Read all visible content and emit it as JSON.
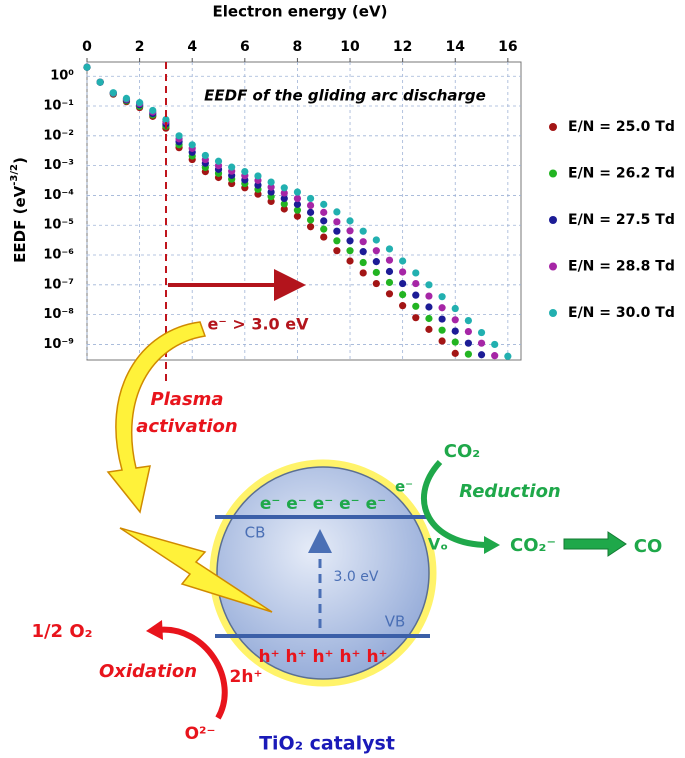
{
  "chart_data": {
    "type": "scatter",
    "x_label": "Electron energy (eV)",
    "y_label": [
      "EEDF (eV",
      "-3/2",
      ")"
    ],
    "annotation": "EEDF of the gliding arc discharge",
    "x": [
      0,
      0.5,
      1,
      1.5,
      2,
      2.5,
      3,
      3.5,
      4,
      4.5,
      5,
      5.5,
      6,
      6.5,
      7,
      7.5,
      8,
      8.5,
      9,
      9.5,
      10,
      10.5,
      11,
      11.5,
      12,
      12.5,
      13,
      13.5,
      14,
      14.5,
      15,
      15.5,
      16
    ],
    "xlim": [
      0,
      16.5
    ],
    "xticks": [
      0,
      2,
      4,
      6,
      8,
      10,
      12,
      14,
      16
    ],
    "log_y": true,
    "ylim": [
      3e-10,
      3
    ],
    "yticks": [
      {
        "value": 1,
        "label": "10⁰"
      },
      {
        "value": 0.1,
        "label": "10⁻¹"
      },
      {
        "value": 0.01,
        "label": "10⁻²"
      },
      {
        "value": 0.001,
        "label": "10⁻³"
      },
      {
        "value": 0.0001,
        "label": "10⁻⁴"
      },
      {
        "value": 1e-05,
        "label": "10⁻⁵"
      },
      {
        "value": 1e-06,
        "label": "10⁻⁶"
      },
      {
        "value": 1e-07,
        "label": "10⁻⁷"
      },
      {
        "value": 1e-08,
        "label": "10⁻⁸"
      },
      {
        "value": 1e-09,
        "label": "10⁻⁹"
      }
    ],
    "grid": true,
    "legend": "right",
    "series": [
      {
        "name": "E/N = 25.0 Td",
        "color": "#a31515",
        "values": [
          2.0,
          0.63,
          0.25,
          0.14,
          0.089,
          0.045,
          0.018,
          0.004,
          0.0016,
          0.00063,
          0.0004,
          0.00025,
          0.00018,
          0.00011,
          6.3e-05,
          3.5e-05,
          2e-05,
          8.9e-06,
          4e-06,
          1.4e-06,
          6.3e-07,
          2.5e-07,
          1.1e-07,
          5e-08,
          2e-08,
          7.9e-09,
          3.2e-09,
          1.3e-09,
          5e-10,
          null,
          null,
          null,
          null
        ]
      },
      {
        "name": "E/N = 26.2 Td",
        "color": "#22b422",
        "values": [
          2.0,
          0.63,
          0.26,
          0.15,
          0.098,
          0.05,
          0.021,
          0.005,
          0.0021,
          0.00087,
          0.00055,
          0.00035,
          0.00025,
          0.00016,
          9.1e-05,
          5.2e-05,
          3.2e-05,
          1.5e-05,
          7.4e-06,
          3e-06,
          1.4e-06,
          5.6e-07,
          2.6e-07,
          1.2e-07,
          4.7e-08,
          1.9e-08,
          7.4e-09,
          3e-09,
          1.2e-09,
          4.7e-10,
          null,
          null,
          null
        ]
      },
      {
        "name": "E/N = 27.5 Td",
        "color": "#1c1c96",
        "values": [
          2.0,
          0.63,
          0.27,
          0.16,
          0.11,
          0.056,
          0.025,
          0.0063,
          0.0028,
          0.0012,
          0.00075,
          0.00047,
          0.00033,
          0.00022,
          0.00013,
          7.9e-05,
          5e-05,
          2.7e-05,
          1.4e-05,
          6.3e-06,
          3e-06,
          1.3e-06,
          6e-07,
          2.8e-07,
          1.1e-07,
          4.5e-08,
          1.8e-08,
          7.1e-09,
          2.8e-09,
          1.1e-09,
          4.5e-10,
          null,
          null
        ]
      },
      {
        "name": "E/N = 28.8 Td",
        "color": "#a626a6",
        "values": [
          2.0,
          0.63,
          0.27,
          0.17,
          0.12,
          0.063,
          0.03,
          0.0079,
          0.0038,
          0.0016,
          0.001,
          0.00065,
          0.00046,
          0.00032,
          0.00019,
          0.00012,
          7.9e-05,
          4.6e-05,
          2.7e-05,
          1.3e-05,
          6.5e-06,
          2.8e-06,
          1.4e-06,
          6.7e-07,
          2.7e-07,
          1.1e-07,
          4.2e-08,
          1.7e-08,
          6.7e-09,
          2.7e-09,
          1.1e-09,
          4.2e-10,
          null
        ]
      },
      {
        "name": "E/N = 30.0 Td",
        "color": "#22b0b0",
        "values": [
          2.0,
          0.63,
          0.28,
          0.18,
          0.13,
          0.071,
          0.035,
          0.01,
          0.005,
          0.0022,
          0.0014,
          0.00089,
          0.00063,
          0.00045,
          0.00028,
          0.00018,
          0.00013,
          7.9e-05,
          5e-05,
          2.8e-05,
          1.4e-05,
          6.3e-06,
          3.2e-06,
          1.6e-06,
          6.3e-07,
          2.5e-07,
          1e-07,
          4e-08,
          1.6e-08,
          6.3e-09,
          2.5e-09,
          1e-09,
          4e-10
        ]
      }
    ]
  },
  "diagram": {
    "threshold": "e⁻ > 3.0 eV",
    "plasma_activation": [
      "Plasma",
      "activation"
    ],
    "cb": "CB",
    "vb": "VB",
    "gap": "3.0 eV",
    "electrons": "e⁻ e⁻ e⁻ e⁻ e⁻",
    "holes": "h⁺ h⁺ h⁺ h⁺ h⁺",
    "co2": "CO₂",
    "electron": "e⁻",
    "reduction": "Reduction",
    "vacancy": "Vₒ",
    "co2_anion": "CO₂⁻",
    "co": "CO",
    "half_o2": "1/2 O₂",
    "oxidation": "Oxidation",
    "two_holes": "2h⁺",
    "oxide": "O²⁻",
    "catalyst": "TiO₂ catalyst"
  }
}
